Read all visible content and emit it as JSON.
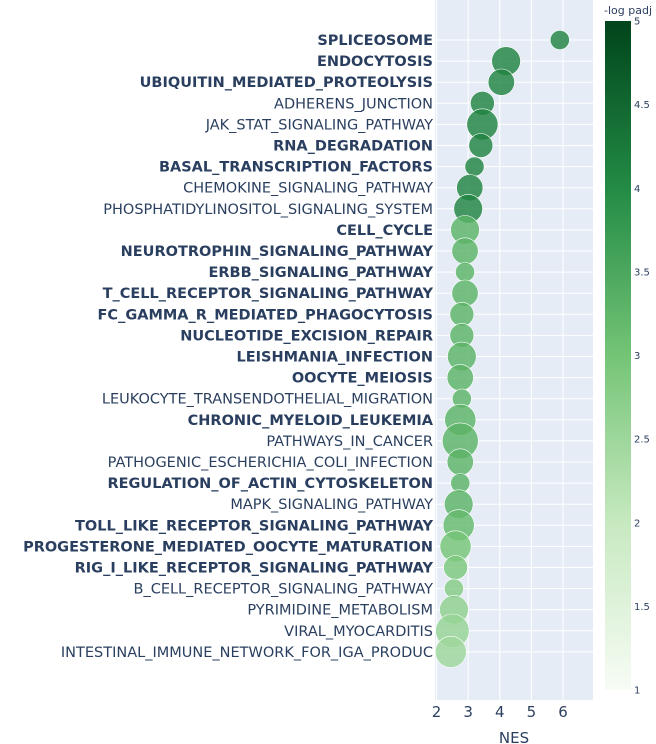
{
  "chart_data": {
    "type": "scatter",
    "xlabel": "NES",
    "xlim": [
      1.95,
      6.95
    ],
    "xticks": [
      2,
      3,
      4,
      5,
      6
    ],
    "grid": true,
    "colorbar": {
      "title": "-log padj",
      "range": [
        1,
        5
      ],
      "ticks": [
        "1",
        "1.5",
        "2",
        "2.5",
        "3",
        "3.5",
        "4",
        "4.5",
        "5"
      ],
      "colors": [
        "#f7fcf5",
        "#c7e9c0",
        "#74c476",
        "#238b45",
        "#00441b"
      ]
    },
    "points": [
      {
        "label": "SPLICEOSOME",
        "bold": true,
        "nes": 5.9,
        "size": 4,
        "logp": 4.1
      },
      {
        "label": "ENDOCYTOSIS",
        "bold": true,
        "nes": 4.2,
        "size": 6,
        "logp": 4.1
      },
      {
        "label": "UBIQUITIN_MEDIATED_PROTEOLYSIS",
        "bold": true,
        "nes": 4.05,
        "size": 5.5,
        "logp": 4.1
      },
      {
        "label": "ADHERENS_JUNCTION",
        "bold": false,
        "nes": 3.45,
        "size": 5,
        "logp": 4.1
      },
      {
        "label": "JAK_STAT_SIGNALING_PATHWAY",
        "bold": false,
        "nes": 3.45,
        "size": 6.5,
        "logp": 4.1
      },
      {
        "label": "RNA_DEGRADATION",
        "bold": true,
        "nes": 3.4,
        "size": 5,
        "logp": 4.1
      },
      {
        "label": "BASAL_TRANSCRIPTION_FACTORS",
        "bold": true,
        "nes": 3.2,
        "size": 4,
        "logp": 4.1
      },
      {
        "label": "CHEMOKINE_SIGNALING_PATHWAY",
        "bold": false,
        "nes": 3.05,
        "size": 5.5,
        "logp": 4.1
      },
      {
        "label": "PHOSPHATIDYLINOSITOL_SIGNALING_SYSTEM",
        "bold": false,
        "nes": 3.0,
        "size": 6,
        "logp": 4.1
      },
      {
        "label": "CELL_CYCLE",
        "bold": true,
        "nes": 2.9,
        "size": 6,
        "logp": 3.3
      },
      {
        "label": "NEUROTROPHIN_SIGNALING_PATHWAY",
        "bold": true,
        "nes": 2.9,
        "size": 5.5,
        "logp": 3.3
      },
      {
        "label": "ERBB_SIGNALING_PATHWAY",
        "bold": true,
        "nes": 2.9,
        "size": 4,
        "logp": 3.3
      },
      {
        "label": "T_CELL_RECEPTOR_SIGNALING_PATHWAY",
        "bold": true,
        "nes": 2.9,
        "size": 5.5,
        "logp": 3.3
      },
      {
        "label": "FC_GAMMA_R_MEDIATED_PHAGOCYTOSIS",
        "bold": true,
        "nes": 2.8,
        "size": 5,
        "logp": 3.3
      },
      {
        "label": "NUCLEOTIDE_EXCISION_REPAIR",
        "bold": true,
        "nes": 2.8,
        "size": 5,
        "logp": 3.3
      },
      {
        "label": "LEISHMANIA_INFECTION",
        "bold": true,
        "nes": 2.8,
        "size": 6,
        "logp": 3.3
      },
      {
        "label": "OOCYTE_MEIOSIS",
        "bold": true,
        "nes": 2.75,
        "size": 5.5,
        "logp": 3.3
      },
      {
        "label": "LEUKOCYTE_TRANSENDOTHELIAL_MIGRATION",
        "bold": false,
        "nes": 2.8,
        "size": 4,
        "logp": 3.3
      },
      {
        "label": "CHRONIC_MYELOID_LEUKEMIA",
        "bold": true,
        "nes": 2.75,
        "size": 6.5,
        "logp": 3.3
      },
      {
        "label": "PATHWAYS_IN_CANCER",
        "bold": false,
        "nes": 2.75,
        "size": 7.5,
        "logp": 3.3
      },
      {
        "label": "PATHOGENIC_ESCHERICHIA_COLI_INFECTION",
        "bold": false,
        "nes": 2.75,
        "size": 5.5,
        "logp": 3.3
      },
      {
        "label": "REGULATION_OF_ACTIN_CYTOSKELETON",
        "bold": true,
        "nes": 2.75,
        "size": 4,
        "logp": 3.3
      },
      {
        "label": "MAPK_SIGNALING_PATHWAY",
        "bold": false,
        "nes": 2.7,
        "size": 6,
        "logp": 3.3
      },
      {
        "label": "TOLL_LIKE_RECEPTOR_SIGNALING_PATHWAY",
        "bold": true,
        "nes": 2.7,
        "size": 6.5,
        "logp": 3.2
      },
      {
        "label": "PROGESTERONE_MEDIATED_OOCYTE_MATURATION",
        "bold": true,
        "nes": 2.6,
        "size": 6.5,
        "logp": 3.0
      },
      {
        "label": "RIG_I_LIKE_RECEPTOR_SIGNALING_PATHWAY",
        "bold": true,
        "nes": 2.6,
        "size": 5,
        "logp": 2.9
      },
      {
        "label": "B_CELL_RECEPTOR_SIGNALING_PATHWAY",
        "bold": false,
        "nes": 2.55,
        "size": 4,
        "logp": 2.8
      },
      {
        "label": "PYRIMIDINE_METABOLISM",
        "bold": false,
        "nes": 2.55,
        "size": 6,
        "logp": 2.7
      },
      {
        "label": "VIRAL_MYOCARDITIS",
        "bold": false,
        "nes": 2.5,
        "size": 7,
        "logp": 2.6
      },
      {
        "label": "INTESTINAL_IMMUNE_NETWORK_FOR_IGA_PRODUC",
        "bold": false,
        "nes": 2.45,
        "size": 6.5,
        "logp": 2.5
      }
    ]
  }
}
